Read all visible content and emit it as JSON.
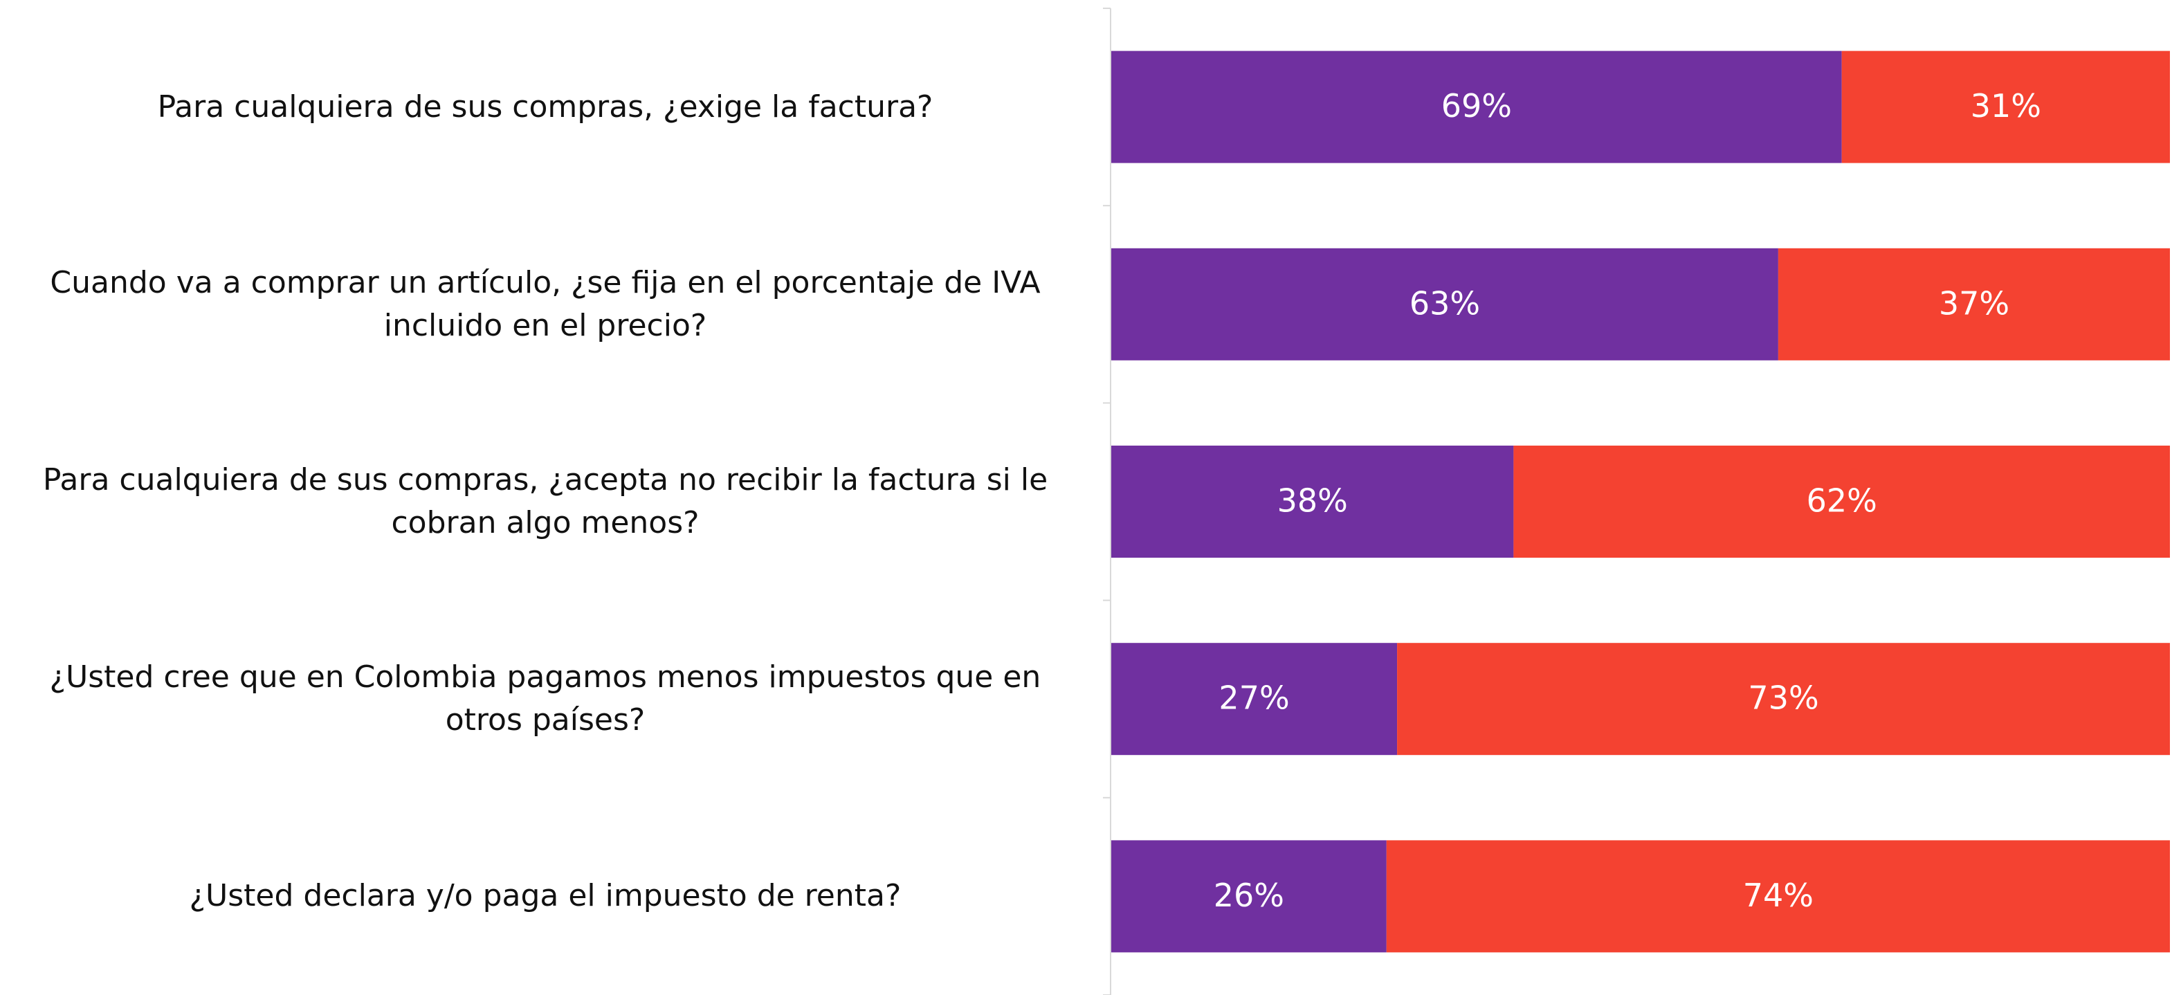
{
  "chart_data": {
    "type": "bar",
    "orientation": "horizontal",
    "stacked": true,
    "categories": [
      "Para cualquiera de sus compras, ¿exige la factura?",
      "Cuando va a comprar un artículo, ¿se fija en el porcentaje de IVA incluido en el precio?",
      "Para cualquiera de sus compras, ¿acepta no recibir la factura si le cobran algo menos?",
      "¿Usted cree que en Colombia pagamos menos impuestos que en otros países?",
      "¿Usted declara y/o paga el impuesto de renta?"
    ],
    "series": [
      {
        "color": "#7030a0",
        "values": [
          69,
          63,
          38,
          27,
          26
        ],
        "value_labels": [
          "69%",
          "63%",
          "38%",
          "27%",
          "26%"
        ]
      },
      {
        "color": "#f44231",
        "values": [
          31,
          37,
          62,
          73,
          74
        ],
        "value_labels": [
          "31%",
          "37%",
          "62%",
          "73%",
          "74%"
        ]
      }
    ],
    "xlim": [
      0,
      100
    ]
  }
}
